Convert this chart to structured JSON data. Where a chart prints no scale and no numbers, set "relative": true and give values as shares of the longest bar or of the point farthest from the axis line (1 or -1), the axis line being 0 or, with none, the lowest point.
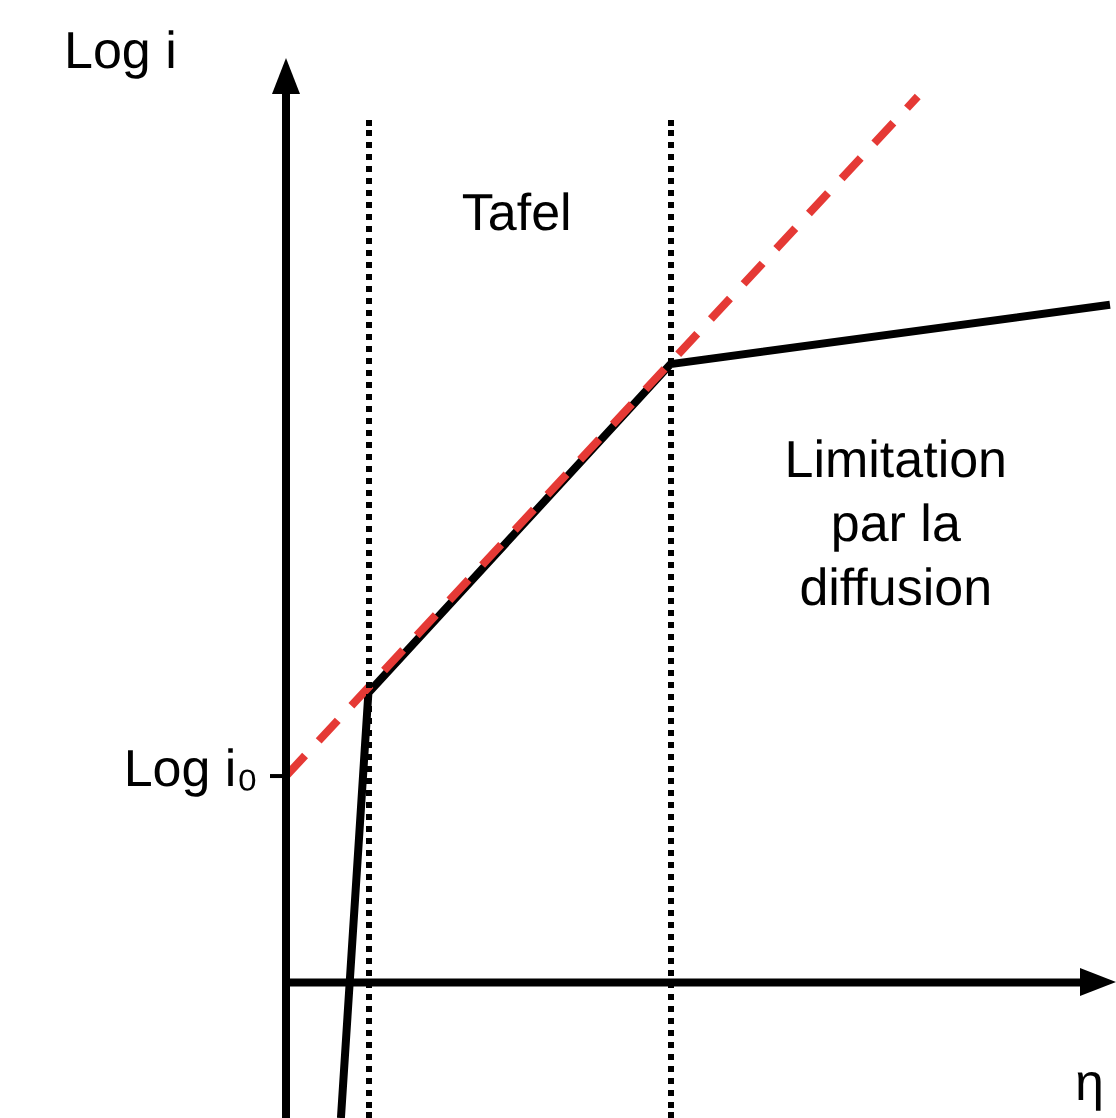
{
  "chart_data": {
    "type": "line",
    "relative": true,
    "xlabel": "η",
    "ylabel": "Log i",
    "tick_labels": false,
    "legend": false,
    "marker": "none",
    "categories": [
      null,
      null,
      null,
      null,
      null,
      null,
      null,
      null,
      null,
      null,
      null,
      null,
      null,
      null,
      null,
      null,
      null,
      null,
      null,
      null,
      null,
      null,
      null,
      null,
      null,
      null,
      null,
      null,
      null,
      null,
      null
    ],
    "series": [
      {
        "color": "#000000",
        "line_style": "solid",
        "values": [
          null,
          null,
          -0.153,
          0.327,
          null,
          null,
          null,
          null,
          null,
          null,
          null,
          null,
          null,
          null,
          0.698,
          null,
          null,
          null,
          null,
          null,
          null,
          null,
          null,
          null,
          null,
          null,
          null,
          null,
          null,
          null,
          0.765
        ]
      },
      {
        "color": "#e53935",
        "line_style": "dashed",
        "values": [
          0.233,
          null,
          null,
          null,
          null,
          null,
          null,
          null,
          null,
          null,
          null,
          null,
          null,
          null,
          null,
          null,
          null,
          null,
          null,
          null,
          null,
          null,
          null,
          1,
          null,
          null,
          null,
          null,
          null,
          null,
          null
        ]
      }
    ],
    "annotations": [
      "Log i₀",
      "Tafel",
      "Limitation par la diffusion"
    ]
  }
}
